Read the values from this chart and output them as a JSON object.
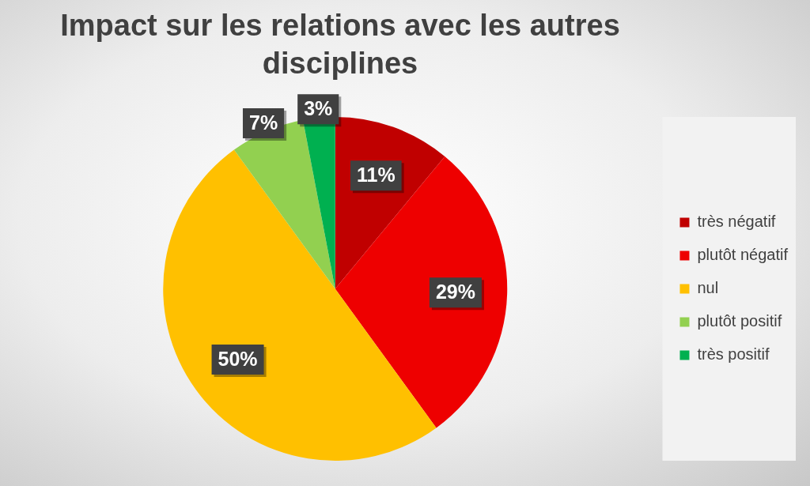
{
  "chart_data": {
    "type": "pie",
    "title": "Impact sur les relations avec les autres disciplines",
    "categories": [
      "très négatif",
      "plutôt négatif",
      "nul",
      "plutôt positif",
      "très positif"
    ],
    "values": [
      11,
      29,
      50,
      7,
      3
    ],
    "value_labels": [
      "11%",
      "29%",
      "50%",
      "7%",
      "3%"
    ],
    "colors": [
      "#c00000",
      "#ee0000",
      "#ffc000",
      "#92d050",
      "#00b050"
    ],
    "legend": "right"
  }
}
